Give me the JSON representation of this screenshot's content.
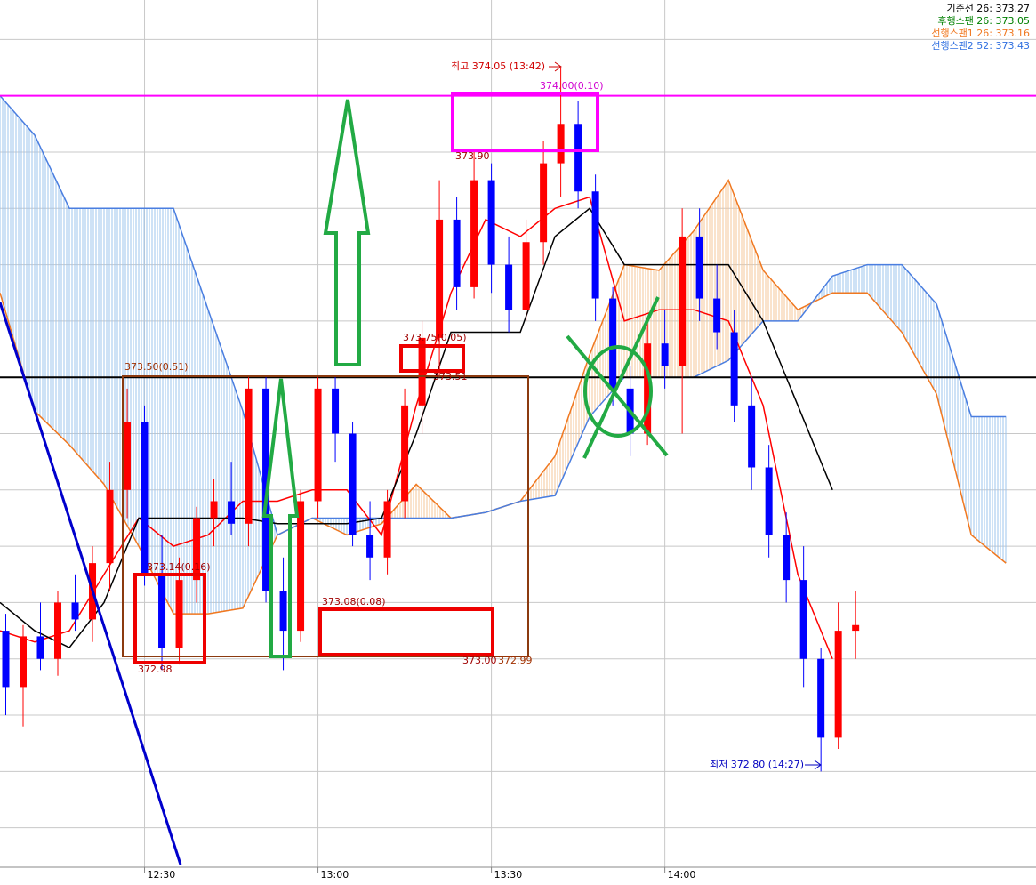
{
  "chart_data": {
    "type": "candlestick",
    "xlim": [
      0,
      179.2
    ],
    "ylim": [
      372.63,
      374.17
    ],
    "xticks": [
      {
        "value": 25,
        "label": "12:30"
      },
      {
        "value": 55,
        "label": "13:00"
      },
      {
        "value": 85,
        "label": "13:30"
      },
      {
        "value": 115,
        "label": "14:00"
      }
    ],
    "ygrid": [
      372.7,
      372.8,
      372.9,
      373.0,
      373.1,
      373.2,
      373.3,
      373.4,
      373.5,
      373.6,
      373.7,
      373.8,
      373.9,
      374.0,
      374.1
    ],
    "up_color": "#ff0000",
    "down_color": "#0000ff",
    "x": [
      1,
      4,
      7,
      10,
      13,
      16,
      19,
      22,
      25,
      28,
      31,
      34,
      37,
      40,
      43,
      46,
      49,
      52,
      55,
      58,
      61,
      64,
      67,
      70,
      73,
      76,
      79,
      82,
      85,
      88,
      91,
      94,
      97,
      100,
      103,
      106,
      109,
      112,
      115,
      118,
      121,
      124,
      127,
      130,
      133,
      136,
      139,
      142,
      145,
      148
    ],
    "open": [
      373.05,
      372.95,
      373.04,
      373.0,
      373.1,
      373.07,
      373.17,
      373.3,
      373.42,
      373.15,
      373.02,
      373.14,
      373.25,
      373.28,
      373.24,
      373.48,
      373.12,
      373.05,
      373.28,
      373.48,
      373.4,
      373.22,
      373.18,
      373.28,
      373.45,
      373.57,
      373.78,
      373.66,
      373.85,
      373.7,
      373.62,
      373.74,
      373.88,
      373.95,
      373.83,
      373.64,
      373.48,
      373.4,
      373.56,
      373.52,
      373.75,
      373.64,
      373.58,
      373.45,
      373.34,
      373.22,
      373.14,
      373.0,
      372.86,
      373.05
    ],
    "high": [
      373.08,
      373.06,
      373.1,
      373.12,
      373.15,
      373.2,
      373.35,
      373.48,
      373.45,
      373.22,
      373.18,
      373.27,
      373.32,
      373.35,
      373.5,
      373.5,
      373.18,
      373.3,
      373.5,
      373.5,
      373.42,
      373.28,
      373.3,
      373.48,
      373.6,
      373.85,
      373.82,
      373.9,
      373.88,
      373.75,
      373.78,
      373.92,
      374.05,
      373.99,
      373.86,
      373.66,
      373.52,
      373.6,
      373.62,
      373.8,
      373.8,
      373.7,
      373.62,
      373.5,
      373.38,
      373.26,
      373.2,
      373.02,
      373.1,
      373.12
    ],
    "low": [
      372.9,
      372.88,
      372.98,
      372.97,
      373.05,
      373.03,
      373.12,
      373.25,
      373.13,
      372.98,
      372.99,
      373.1,
      373.2,
      373.22,
      373.2,
      373.1,
      372.98,
      373.03,
      373.25,
      373.35,
      373.2,
      373.14,
      373.15,
      373.25,
      373.4,
      373.5,
      373.62,
      373.64,
      373.65,
      373.58,
      373.6,
      373.7,
      373.82,
      373.8,
      373.6,
      373.45,
      373.36,
      373.38,
      373.48,
      373.4,
      373.6,
      373.55,
      373.42,
      373.3,
      373.18,
      373.1,
      372.95,
      372.8,
      372.84,
      373.0
    ],
    "close": [
      372.95,
      373.04,
      373.0,
      373.1,
      373.07,
      373.17,
      373.3,
      373.42,
      373.15,
      373.02,
      373.14,
      373.25,
      373.28,
      373.24,
      373.48,
      373.12,
      373.05,
      373.28,
      373.48,
      373.4,
      373.22,
      373.18,
      373.28,
      373.45,
      373.57,
      373.78,
      373.66,
      373.85,
      373.7,
      373.62,
      373.74,
      373.88,
      373.95,
      373.83,
      373.64,
      373.48,
      373.4,
      373.56,
      373.52,
      373.75,
      373.64,
      373.58,
      373.45,
      373.34,
      373.22,
      373.14,
      373.0,
      372.86,
      373.05,
      373.06
    ],
    "lines": [
      {
        "color": "#ff0000",
        "x": [
          0,
          6,
          12,
          18,
          24,
          30,
          36,
          42,
          48,
          54,
          60,
          66,
          72,
          78,
          84,
          90,
          96,
          102,
          108,
          114,
          120,
          126,
          132,
          138,
          144
        ],
        "values": [
          373.05,
          373.03,
          373.05,
          373.15,
          373.25,
          373.2,
          373.22,
          373.28,
          373.28,
          373.3,
          373.3,
          373.22,
          373.45,
          373.65,
          373.78,
          373.75,
          373.8,
          373.82,
          373.6,
          373.62,
          373.62,
          373.6,
          373.45,
          373.15,
          373.0
        ]
      },
      {
        "color": "#000000",
        "x": [
          0,
          6,
          12,
          18,
          24,
          30,
          36,
          42,
          48,
          54,
          60,
          66,
          72,
          78,
          84,
          90,
          96,
          102,
          108,
          114,
          120,
          126,
          132,
          138,
          144
        ],
        "values": [
          373.1,
          373.05,
          373.02,
          373.1,
          373.25,
          373.25,
          373.25,
          373.25,
          373.24,
          373.24,
          373.24,
          373.25,
          373.4,
          373.58,
          373.58,
          373.58,
          373.75,
          373.8,
          373.7,
          373.7,
          373.7,
          373.7,
          373.6,
          373.45,
          373.3
        ]
      }
    ],
    "cloud": {
      "x": [
        0,
        6,
        12,
        18,
        24,
        30,
        36,
        42,
        48,
        54,
        60,
        66,
        72,
        78,
        84,
        90,
        96,
        102,
        108,
        114,
        120,
        126,
        132,
        138,
        144,
        150,
        156,
        162,
        168,
        174
      ],
      "span1_color": "#f07820",
      "span2_color": "#4a7ee0",
      "span1": [
        373.65,
        373.44,
        373.38,
        373.31,
        373.2,
        373.08,
        373.08,
        373.09,
        373.22,
        373.25,
        373.22,
        373.24,
        373.31,
        373.25,
        373.26,
        373.28,
        373.36,
        373.54,
        373.7,
        373.69,
        373.76,
        373.85,
        373.69,
        373.62,
        373.65,
        373.65,
        373.58,
        373.47,
        373.22,
        373.17
      ],
      "span2": [
        374.0,
        373.93,
        373.8,
        373.8,
        373.8,
        373.8,
        373.62,
        373.44,
        373.22,
        373.25,
        373.25,
        373.25,
        373.25,
        373.25,
        373.26,
        373.28,
        373.29,
        373.43,
        373.5,
        373.5,
        373.5,
        373.53,
        373.6,
        373.6,
        373.68,
        373.7,
        373.7,
        373.63,
        373.43,
        373.43
      ]
    },
    "hlines": [
      {
        "value": 374.0,
        "color": "#ff00ff"
      },
      {
        "value": 373.5,
        "color": "#000000"
      }
    ],
    "legend": [
      {
        "label": "기준선 26: 373.27",
        "color": "#000000"
      },
      {
        "label": "후행스팬 26: 373.05",
        "color": "#008000"
      },
      {
        "label": "선행스팬1 26: 373.16",
        "color": "#f07820"
      },
      {
        "label": "선행스팬2 52: 373.43",
        "color": "#3070e0"
      }
    ],
    "annotations": [
      {
        "text": "최고 374.05 (13:42)",
        "color": "#d00000"
      },
      {
        "text": "374.00(0.10)",
        "color": "#d000d0"
      },
      {
        "text": "373.90",
        "color": "#a00000"
      },
      {
        "text": "373.50(0.51)",
        "color": "#a03000"
      },
      {
        "text": "373.75(0.05)",
        "color": "#a00000"
      },
      {
        "text": "373.51",
        "color": "#a00000"
      },
      {
        "text": "373.14(0.16)",
        "color": "#a00000"
      },
      {
        "text": "372.98",
        "color": "#a00000"
      },
      {
        "text": "373.08(0.08)",
        "color": "#a00000"
      },
      {
        "text": "373.00",
        "color": "#a00000"
      },
      {
        "text": "372.99",
        "color": "#a03000"
      },
      {
        "text": "최저 372.80 (14:27)",
        "color": "#0000c0"
      }
    ]
  }
}
